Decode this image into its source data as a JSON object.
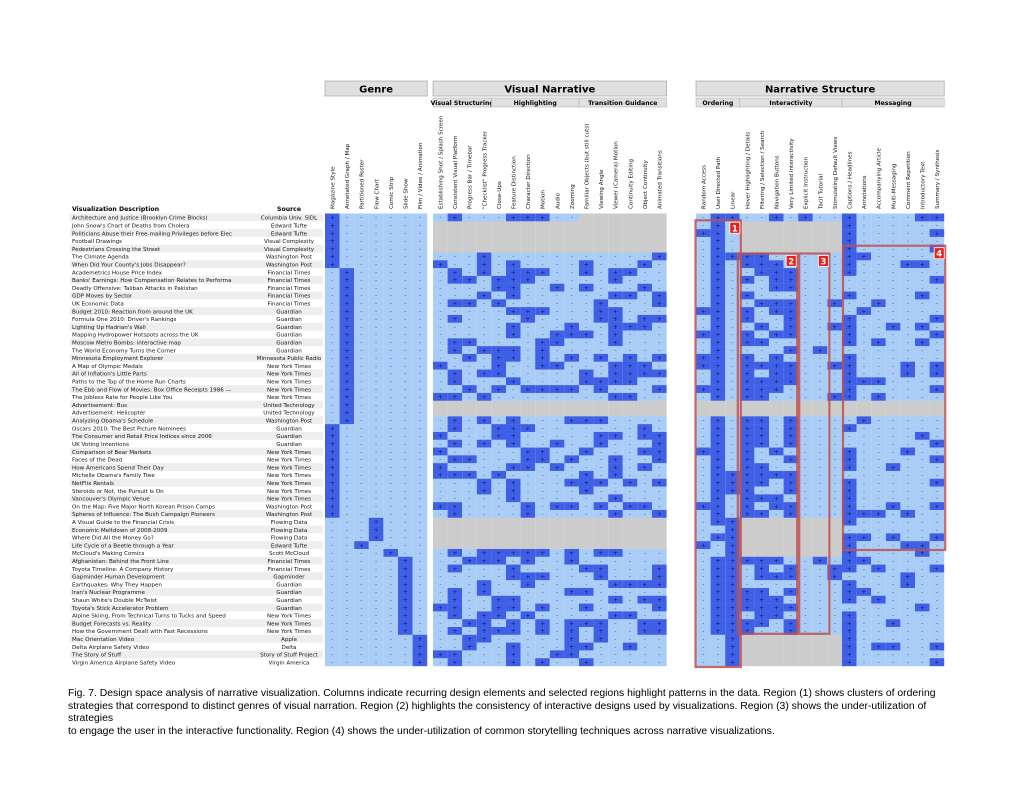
{
  "headers": {
    "genre": "Genre",
    "visual_narrative": "Visual Narrative",
    "narrative_structure": "Narrative Structure",
    "visual_structuring": "Visual Structuring",
    "highlighting": "Highlighting",
    "transition_guidance": "Transition Guidance",
    "ordering": "Ordering",
    "interactivity": "Interactivity",
    "messaging": "Messaging",
    "desc_col": "Visualization Description",
    "source_col": "Source"
  },
  "columns": [
    "Magazine Style",
    "Annotated Graph / Map",
    "Partitioned Poster",
    "Flow Chart",
    "Comic Strip",
    "Slide Show",
    "Film / Video / Animation",
    "Establishing Shot / Splash Screen",
    "Consistent Visual Platform",
    "Progress Bar / Timebar",
    "\"Checklist\" Progress Tracker",
    "Close-Ups",
    "Feature Distinction",
    "Character Direction",
    "Motion",
    "Audio",
    "Zooming",
    "Familiar Objects (but still cuts)",
    "Viewing Angle",
    "Viewer (Camera) Motion",
    "Continuity Editing",
    "Object Continuity",
    "Animated Transitions",
    "Random Access",
    "User Directed Path",
    "Linear",
    "Hover Highlighting / Details",
    "Filtering / Selection / Search",
    "Navigation Buttons",
    "Very Limited Interactivity",
    "Explicit Instruction",
    "Tacit Tutorial",
    "Stimulating Default Views",
    "Captions / Headlines",
    "Annotations",
    "Accompanying Article",
    "Multi-Messaging",
    "Comment Repetition",
    "Introductory Text",
    "Summary / Synthesis"
  ],
  "rows": [
    [
      "Architecture and Justice (Brooklyn Crime Blocks)",
      "Columbia Univ. SIDL"
    ],
    [
      "John Snow's Chart of Deaths from Cholera",
      "Edward Tufte"
    ],
    [
      "Politicians Abuse their Free-mailing Privileges before Elec",
      "Edward Tufte"
    ],
    [
      "Football Drawings",
      "Visual Complexity"
    ],
    [
      "Pedestrians Crossing the Street",
      "Visual Complexity"
    ],
    [
      "The Climate Agenda",
      "Washington Post"
    ],
    [
      "When Did Your County's Jobs Disappear?",
      "Washington Post"
    ],
    [
      "Academetrics House Price Index",
      "Financial Times"
    ],
    [
      "Banks' Earnings: How Compensation Relates to Performa",
      "Financial Times"
    ],
    [
      "Deadly Offensive: Taliban Attacks in Pakistan",
      "Financial Times"
    ],
    [
      "GDP Moves by Sector",
      "Financial Times"
    ],
    [
      "UK Economic Data",
      "Financial Times"
    ],
    [
      "Budget 2010: Reaction from around the UK",
      "Guardian"
    ],
    [
      "Formula One 2010: Driver's Rankings",
      "Guardian"
    ],
    [
      "Lighting Up Hadrian's Wall",
      "Guardian"
    ],
    [
      "Mapping Hydropower Hotspots across the UK",
      "Guardian"
    ],
    [
      "Moscow Metro Bombs: interactive map",
      "Guardian"
    ],
    [
      "The World Economy Turns the Corner",
      "Guardian"
    ],
    [
      "Minnesota Employment Explorer",
      "Minnesota Public Radio"
    ],
    [
      "A Map of Olympic Medals",
      "New York Times"
    ],
    [
      "All of Inflation's Little Parts",
      "New York Times"
    ],
    [
      "Paths to the Top of the Home Run Charts",
      "New York Times"
    ],
    [
      "The Ebb and Flow of Movies: Box Office Receipts 1986 —",
      "New York Times"
    ],
    [
      "The Jobless Rate for People Like You",
      "New York Times"
    ],
    [
      "Advertisement: Bus",
      "United Technology"
    ],
    [
      "Advertisement: Helicopter",
      "United Technology"
    ],
    [
      "Analyzing Obama's Schedule",
      "Washington Post"
    ],
    [
      "Oscars 2010: The Best Picture Nominees",
      "Guardian"
    ],
    [
      "The Consumer and Retail Price Indices since 2006",
      "Guardian"
    ],
    [
      "UK Voting Intentions",
      "Guardian"
    ],
    [
      "Comparison of Bear Markets",
      "New York Times"
    ],
    [
      "Faces of the Dead",
      "New York Times"
    ],
    [
      "How Americans Spend Their Day",
      "New York Times"
    ],
    [
      "Michelle Obama's Family Tree",
      "New York Times"
    ],
    [
      "NetFlix Rentals",
      "New York Times"
    ],
    [
      "Steroids or Not, the Pursuit is On",
      "New York Times"
    ],
    [
      "Vancouver's Olympic Venue",
      "New York Times"
    ],
    [
      "On the Map: Five Major North Korean Prison Camps",
      "Washington Post"
    ],
    [
      "Spheres of Influence: The Bush Campaign Pioneers",
      "Washington Post"
    ],
    [
      "A Visual Guide to the Financial Crisis",
      "Flowing Data"
    ],
    [
      "Economic Meltdown of 2008-2009",
      "Flowing Data"
    ],
    [
      "Where Did All the Money Go?",
      "Flowing Data"
    ],
    [
      "Life Cycle of a Beetle through a Year",
      "Edward Tufte"
    ],
    [
      "McCloud's Making Comics",
      "Scott McCloud"
    ],
    [
      "Afghanistan: Behind the Front Line",
      "Financial Times"
    ],
    [
      "Toyota Timeline: A Company History",
      "Financial Times"
    ],
    [
      "Gapminder Human Development",
      "Gapminder"
    ],
    [
      "Earthquakes: Why They Happen",
      "Guardian"
    ],
    [
      "Iran's Nuclear Programme",
      "Guardian"
    ],
    [
      "Shaun White's Double McTwist",
      "Guardian"
    ],
    [
      "Toyota's Stick Accelerator Problem",
      "Guardian"
    ],
    [
      "Alpine Skiing, From Technical Turns to Tucks and Speed",
      "New York Times"
    ],
    [
      "Budget Forecasts vs. Reality",
      "New York Times"
    ],
    [
      "How the Government Dealt with Fast Recessions",
      "New York Times"
    ],
    [
      "Mac Orientation Video",
      "Apple"
    ],
    [
      "Delta Airplane Safety Video",
      "Delta"
    ],
    [
      "The Story of Stuff",
      "Story of Stuff Project"
    ],
    [
      "Virgin America Airplane Safety Video",
      "Virgin America"
    ]
  ],
  "cell_symbols": {
    "on": "+",
    "off": "-"
  },
  "regions": [
    "1",
    "2",
    "3",
    "4"
  ],
  "colors": {
    "on": "#3f5fe6",
    "off": "#a9cdf7",
    "na": "#cccccc",
    "region": "#c0504d",
    "label_bg": "#e8201c",
    "header_bg": "#e0e0e0"
  },
  "caption": {
    "line1": "Fig. 7.  Design space analysis of narrative visualization.  Columns indicate recurring design elements and selected regions highlight patterns in the data.  Region (1) shows clusters of ordering",
    "line2": "strategies that correspond to distinct genres of visual narration. Region (2) highlights the consistency of interactive designs used by visualizations. Region (3) shows the under-utilization of strategies",
    "line3": "to engage the user in the interactive functionality. Region (4) shows the under-utilization of common storytelling techniques across narrative visualizations."
  }
}
